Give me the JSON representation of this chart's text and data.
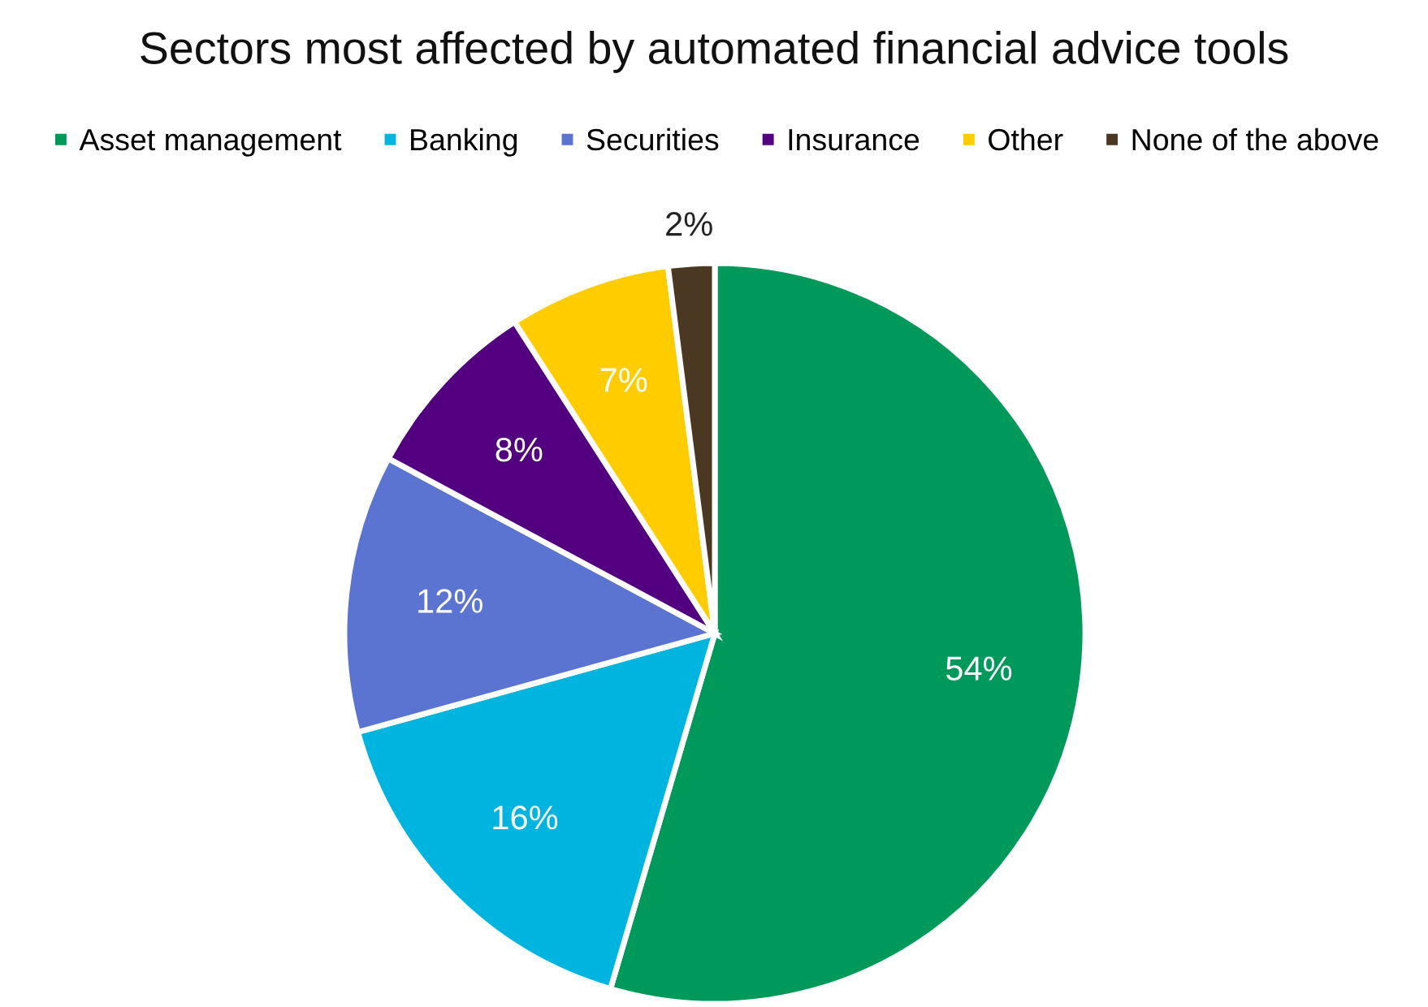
{
  "chart_data": {
    "type": "pie",
    "title": "Sectors most affected by automated financial advice tools",
    "categories": [
      "Asset management",
      "Banking",
      "Securities",
      "Insurance",
      "Other",
      "None of the above"
    ],
    "values": [
      54,
      16,
      12,
      8,
      7,
      2
    ],
    "colors": [
      "#00995c",
      "#00b4e0",
      "#5b74d2",
      "#520080",
      "#ffcc00",
      "#4a3822"
    ],
    "value_labels": [
      "54%",
      "16%",
      "12%",
      "8%",
      "7%",
      "2%"
    ],
    "legend": "top"
  }
}
